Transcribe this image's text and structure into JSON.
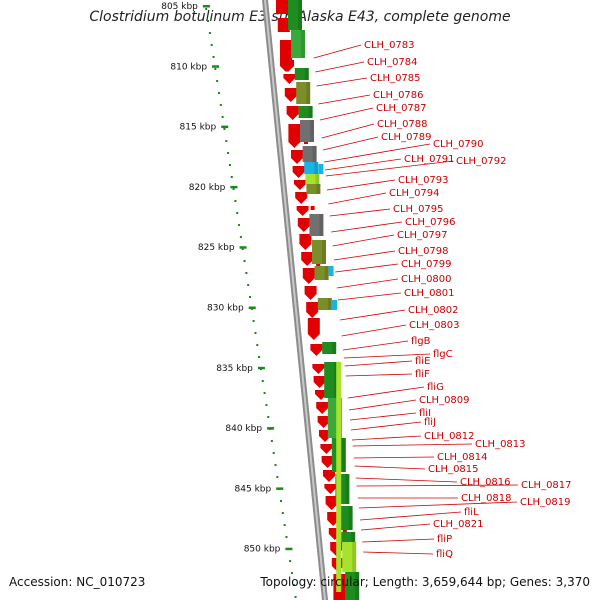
{
  "title": "Clostridium botulinum E3 str. Alaska E43, complete genome",
  "footer": {
    "accession": "Accession: NC_010723",
    "topology": "Topology: circular; Length: 3,659,644 bp; Genes: 3,370"
  },
  "colors": {
    "backbone": "#8c8c8c",
    "forward_cds": "#e00000",
    "reverse_cds_dark": "#1e8c1e",
    "reverse_cds_mid": "#3aa93a",
    "reverse_cds_light": "#a6e22e",
    "olive": "#7a8f2a",
    "grey_block": "#707070",
    "cyan_block": "#19b4e6",
    "label": "#cc0000",
    "scale": "#1a8a1a"
  },
  "scale": {
    "unit": "kbp",
    "ticks": [
      805,
      810,
      815,
      820,
      825,
      830,
      835,
      840,
      845,
      850
    ],
    "tick_labels": [
      "805 kbp",
      "810 kbp",
      "815 kbp",
      "820 kbp",
      "825 kbp",
      "830 kbp",
      "835 kbp",
      "840 kbp",
      "845 kbp",
      "850 kbp"
    ]
  },
  "gene_labels": [
    "CLH_0783",
    "CLH_0784",
    "CLH_0785",
    "CLH_0786",
    "CLH_0787",
    "CLH_0788",
    "CLH_0789",
    "CLH_0790",
    "CLH_0791",
    "CLH_0792",
    "CLH_0793",
    "CLH_0794",
    "CLH_0795",
    "CLH_0796",
    "CLH_0797",
    "CLH_0798",
    "CLH_0799",
    "CLH_0800",
    "CLH_0801",
    "CLH_0802",
    "CLH_0803",
    "flgB",
    "flgC",
    "fliE",
    "fliF",
    "fliG",
    "CLH_0809",
    "fliI",
    "fliJ",
    "CLH_0812",
    "CLH_0813",
    "CLH_0814",
    "CLH_0815",
    "CLH_0816",
    "CLH_0817",
    "CLH_0818",
    "CLH_0819",
    "fliL",
    "CLH_0821",
    "fliP",
    "fliQ"
  ]
}
